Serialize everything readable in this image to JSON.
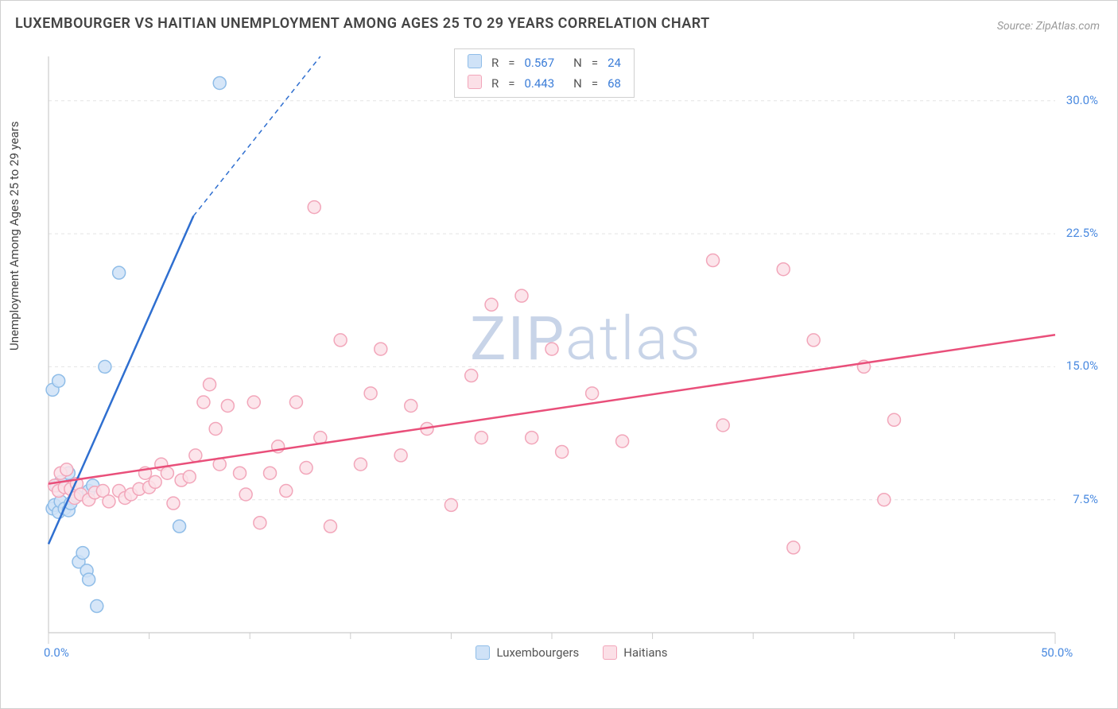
{
  "title": "LUXEMBOURGER VS HAITIAN UNEMPLOYMENT AMONG AGES 25 TO 29 YEARS CORRELATION CHART",
  "source": "Source: ZipAtlas.com",
  "y_axis_label": "Unemployment Among Ages 25 to 29 years",
  "watermark": "ZIPatlas",
  "chart": {
    "type": "scatter",
    "background": "#ffffff",
    "grid_color": "#e4e4e4",
    "axis_color": "#cccccc",
    "tick_label_color": "#4a8ae0",
    "xlim": [
      0,
      50
    ],
    "ylim": [
      0,
      32.5
    ],
    "x_ticks_major": [
      0,
      50
    ],
    "x_ticks_minor": [
      5,
      10,
      15,
      20,
      25,
      30,
      35,
      40,
      45
    ],
    "y_ticks": [
      7.5,
      15.0,
      22.5,
      30.0
    ],
    "x_tick_labels": [
      "0.0%",
      "50.0%"
    ],
    "y_tick_labels": [
      "7.5%",
      "15.0%",
      "22.5%",
      "30.0%"
    ],
    "marker_radius": 8,
    "marker_stroke_width": 1.5,
    "line_width_solid": 2.5,
    "line_width_dash": 1.5
  },
  "series": [
    {
      "name": "Luxembourgers",
      "color_fill": "#cfe2f7",
      "color_stroke": "#8fbde8",
      "line_color": "#2f6fd0",
      "r": "0.567",
      "n": "24",
      "trend": {
        "x1": 0,
        "y1": 5.0,
        "x2_solid": 7.2,
        "y2_solid": 23.5,
        "x2_dash": 13.5,
        "y2_dash": 39.0
      },
      "points": [
        [
          0.2,
          7.0
        ],
        [
          0.3,
          7.2
        ],
        [
          0.5,
          6.8
        ],
        [
          0.6,
          7.4
        ],
        [
          0.8,
          7.0
        ],
        [
          1.0,
          6.9
        ],
        [
          0.4,
          8.3
        ],
        [
          0.6,
          8.5
        ],
        [
          1.0,
          9.0
        ],
        [
          0.2,
          13.7
        ],
        [
          0.5,
          14.2
        ],
        [
          2.0,
          8.0
        ],
        [
          2.2,
          8.3
        ],
        [
          1.1,
          7.3
        ],
        [
          1.4,
          7.7
        ],
        [
          1.5,
          4.0
        ],
        [
          1.7,
          4.5
        ],
        [
          1.9,
          3.5
        ],
        [
          2.4,
          1.5
        ],
        [
          2.0,
          3.0
        ],
        [
          3.5,
          20.3
        ],
        [
          6.5,
          6.0
        ],
        [
          8.5,
          31.0
        ],
        [
          2.8,
          15.0
        ]
      ]
    },
    {
      "name": "Haitians",
      "color_fill": "#fbe0e7",
      "color_stroke": "#f2a6ba",
      "line_color": "#e94f7a",
      "r": "0.443",
      "n": "68",
      "trend": {
        "x1": 0,
        "y1": 8.4,
        "x2_solid": 50,
        "y2_solid": 16.8
      },
      "points": [
        [
          0.3,
          8.3
        ],
        [
          0.5,
          8.0
        ],
        [
          0.8,
          8.2
        ],
        [
          1.1,
          8.1
        ],
        [
          1.4,
          8.4
        ],
        [
          0.6,
          9.0
        ],
        [
          0.9,
          9.2
        ],
        [
          1.3,
          7.6
        ],
        [
          1.6,
          7.8
        ],
        [
          2.0,
          7.5
        ],
        [
          2.3,
          7.9
        ],
        [
          2.7,
          8.0
        ],
        [
          3.0,
          7.4
        ],
        [
          3.5,
          8.0
        ],
        [
          3.8,
          7.6
        ],
        [
          4.1,
          7.8
        ],
        [
          4.5,
          8.1
        ],
        [
          4.8,
          9.0
        ],
        [
          5.0,
          8.2
        ],
        [
          5.3,
          8.5
        ],
        [
          5.6,
          9.5
        ],
        [
          5.9,
          9.0
        ],
        [
          6.2,
          7.3
        ],
        [
          6.6,
          8.6
        ],
        [
          7.0,
          8.8
        ],
        [
          7.3,
          10.0
        ],
        [
          7.7,
          13.0
        ],
        [
          8.0,
          14.0
        ],
        [
          8.3,
          11.5
        ],
        [
          8.5,
          9.5
        ],
        [
          8.9,
          12.8
        ],
        [
          9.5,
          9.0
        ],
        [
          9.8,
          7.8
        ],
        [
          10.2,
          13.0
        ],
        [
          10.5,
          6.2
        ],
        [
          11.0,
          9.0
        ],
        [
          11.4,
          10.5
        ],
        [
          11.8,
          8.0
        ],
        [
          12.3,
          13.0
        ],
        [
          12.8,
          9.3
        ],
        [
          13.2,
          24.0
        ],
        [
          13.5,
          11.0
        ],
        [
          14.0,
          6.0
        ],
        [
          14.5,
          16.5
        ],
        [
          15.5,
          9.5
        ],
        [
          16.0,
          13.5
        ],
        [
          16.5,
          16.0
        ],
        [
          17.5,
          10.0
        ],
        [
          18.0,
          12.8
        ],
        [
          18.8,
          11.5
        ],
        [
          20.0,
          7.2
        ],
        [
          21.0,
          14.5
        ],
        [
          21.5,
          11.0
        ],
        [
          22.0,
          18.5
        ],
        [
          23.5,
          19.0
        ],
        [
          24.0,
          11.0
        ],
        [
          25.0,
          16.0
        ],
        [
          25.5,
          10.2
        ],
        [
          27.0,
          13.5
        ],
        [
          28.5,
          10.8
        ],
        [
          33.0,
          21.0
        ],
        [
          33.5,
          11.7
        ],
        [
          36.5,
          20.5
        ],
        [
          38.0,
          16.5
        ],
        [
          40.5,
          15.0
        ],
        [
          42.0,
          12.0
        ],
        [
          41.5,
          7.5
        ],
        [
          37.0,
          4.8
        ]
      ]
    }
  ],
  "legend_bottom": [
    {
      "label": "Luxembourgers",
      "fill": "#cfe2f7",
      "stroke": "#8fbde8"
    },
    {
      "label": "Haitians",
      "fill": "#fbe0e7",
      "stroke": "#f2a6ba"
    }
  ],
  "stats_labels": {
    "r": "R",
    "n": "N",
    "eq": "="
  }
}
